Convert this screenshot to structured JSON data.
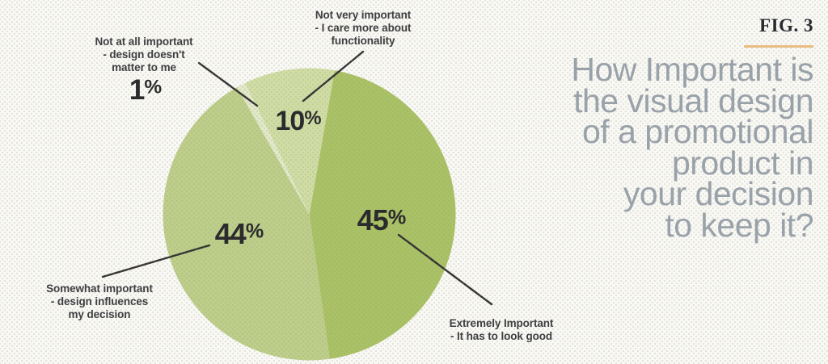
{
  "fig": {
    "label": "FIG. 3"
  },
  "title": {
    "text": "How Important is\nthe visual design\nof a promotional\nproduct in\nyour decision\nto keep it?"
  },
  "colors": {
    "background": "#f8f8f5",
    "accent_rule": "#e9bc82",
    "title_text": "#99a1a9",
    "label_text": "#3f3e41",
    "value_text": "#2b2b2d",
    "leader_line": "#333333"
  },
  "chart_data": {
    "type": "pie",
    "title": "How Important is the visual design of a promotional product in your decision to keep it?",
    "start_angle_deg": 10,
    "direction": "clockwise",
    "slices": [
      {
        "label": "Extremely Important - It has to look good",
        "value": 45,
        "display": "45%",
        "color": "#aac266"
      },
      {
        "label": "Somewhat important - design influences my decision",
        "value": 44,
        "display": "44%",
        "color": "#bdce8a"
      },
      {
        "label": "Not at all important - design doesn't matter to me",
        "value": 1,
        "display": "1%",
        "color": "#e1e9c9"
      },
      {
        "label": "Not very important - I care more about functionality",
        "value": 10,
        "display": "10%",
        "color": "#cfdda5"
      }
    ],
    "legend_position": "callout-labels"
  },
  "callouts": {
    "not_at_all": {
      "text": "Not at all important\n- design doesn't\nmatter to me"
    },
    "not_very": {
      "text": "Not very important\n- I care more about\nfunctionality"
    },
    "somewhat": {
      "text": "Somewhat important\n- design influences\nmy decision"
    },
    "extremely": {
      "text": "Extremely Important\n- It has to look good"
    }
  }
}
